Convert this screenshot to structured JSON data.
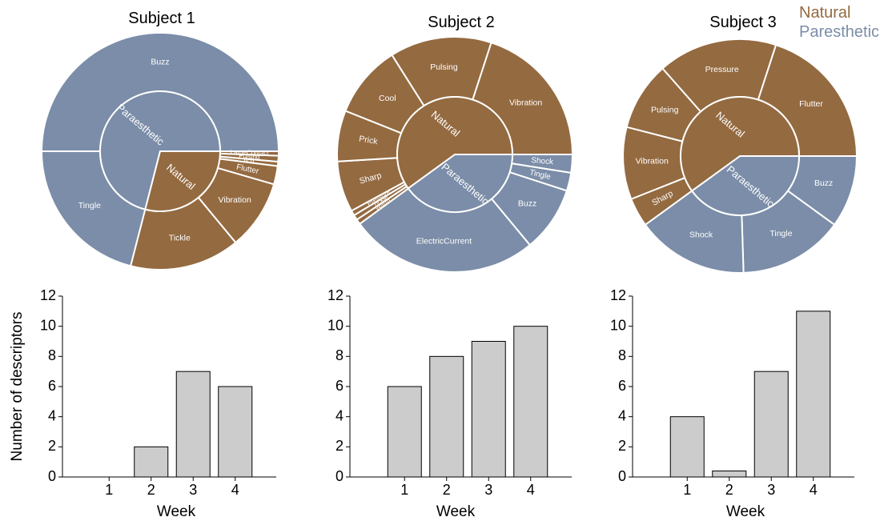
{
  "legend": {
    "natural_label": "Natural",
    "paresthetic_label": "Paresthetic"
  },
  "colors": {
    "natural": "#946a40",
    "paresthetic": "#7b8da8",
    "bar_fill": "#cccccc",
    "bar_stroke": "#000000"
  },
  "shared_axis": {
    "ylabel": "Number of descriptors",
    "xlabel": "Week"
  },
  "chart_data": [
    {
      "type": "sunburst",
      "title": "Subject 1",
      "inner": [
        {
          "label": "Paraesthetic",
          "value": 71,
          "group": "paresthetic"
        },
        {
          "label": "Natural",
          "value": 29,
          "group": "natural"
        }
      ],
      "outer": [
        {
          "label": "Buzz",
          "value": 50,
          "group": "paresthetic"
        },
        {
          "label": "Tingle",
          "value": 21,
          "group": "paresthetic"
        },
        {
          "label": "Tickle",
          "value": 15,
          "group": "natural"
        },
        {
          "label": "Vibration",
          "value": 9.5,
          "group": "natural"
        },
        {
          "label": "Flutter",
          "value": 2.5,
          "group": "natural"
        },
        {
          "label": "Itch",
          "value": 0.6,
          "group": "natural"
        },
        {
          "label": "Pulsing",
          "value": 0.8,
          "group": "natural"
        },
        {
          "label": "LargeContact",
          "value": 0.6,
          "group": "natural"
        }
      ]
    },
    {
      "type": "sunburst",
      "title": "Subject 2",
      "inner": [
        {
          "label": "Paraesthetic",
          "value": 40,
          "group": "paresthetic"
        },
        {
          "label": "Natural",
          "value": 60,
          "group": "natural"
        }
      ],
      "outer": [
        {
          "label": "Shock",
          "value": 2.5,
          "group": "paresthetic"
        },
        {
          "label": "Tingle",
          "value": 2.5,
          "group": "paresthetic"
        },
        {
          "label": "Buzz",
          "value": 9,
          "group": "paresthetic"
        },
        {
          "label": "ElectricCurrent",
          "value": 26,
          "group": "paresthetic"
        },
        {
          "label": "Warm",
          "value": 0.7,
          "group": "natural"
        },
        {
          "label": "Tickle",
          "value": 0.7,
          "group": "natural"
        },
        {
          "label": "Pressure",
          "value": 0.7,
          "group": "natural"
        },
        {
          "label": "Sharp",
          "value": 7,
          "group": "natural"
        },
        {
          "label": "Prick",
          "value": 7,
          "group": "natural"
        },
        {
          "label": "Cool",
          "value": 10,
          "group": "natural"
        },
        {
          "label": "Pulsing",
          "value": 14,
          "group": "natural"
        },
        {
          "label": "Vibration",
          "value": 20,
          "group": "natural"
        }
      ]
    },
    {
      "type": "sunburst",
      "title": "Subject 3",
      "inner": [
        {
          "label": "Paraesthetic",
          "value": 40,
          "group": "paresthetic"
        },
        {
          "label": "Natural",
          "value": 60,
          "group": "natural"
        }
      ],
      "outer": [
        {
          "label": "Buzz",
          "value": 10,
          "group": "paresthetic"
        },
        {
          "label": "Tingle",
          "value": 14.5,
          "group": "paresthetic"
        },
        {
          "label": "Shock",
          "value": 15.5,
          "group": "paresthetic"
        },
        {
          "label": "Sharp",
          "value": 4,
          "group": "natural"
        },
        {
          "label": "Vibration",
          "value": 10,
          "group": "natural"
        },
        {
          "label": "Pulsing",
          "value": 9.5,
          "group": "natural"
        },
        {
          "label": "Pressure",
          "value": 16.5,
          "group": "natural"
        },
        {
          "label": "Flutter",
          "value": 20,
          "group": "natural"
        }
      ]
    },
    {
      "type": "bar",
      "categories": [
        "1",
        "2",
        "3",
        "4"
      ],
      "values": [
        0,
        2,
        7,
        6
      ],
      "ylim": [
        0,
        12
      ],
      "yticks": [
        "0",
        "2",
        "4",
        "6",
        "8",
        "10",
        "12"
      ],
      "xlabel": "Week",
      "ylabel": "Number of descriptors"
    },
    {
      "type": "bar",
      "categories": [
        "1",
        "2",
        "3",
        "4"
      ],
      "values": [
        6,
        8,
        9,
        10
      ],
      "ylim": [
        0,
        12
      ],
      "yticks": [
        "0",
        "2",
        "4",
        "6",
        "8",
        "10",
        "12"
      ],
      "xlabel": "Week"
    },
    {
      "type": "bar",
      "categories": [
        "1",
        "2",
        "3",
        "4"
      ],
      "values": [
        4,
        0.4,
        7,
        11
      ],
      "ylim": [
        0,
        12
      ],
      "yticks": [
        "0",
        "2",
        "4",
        "6",
        "8",
        "10",
        "12"
      ],
      "xlabel": "Week"
    }
  ]
}
